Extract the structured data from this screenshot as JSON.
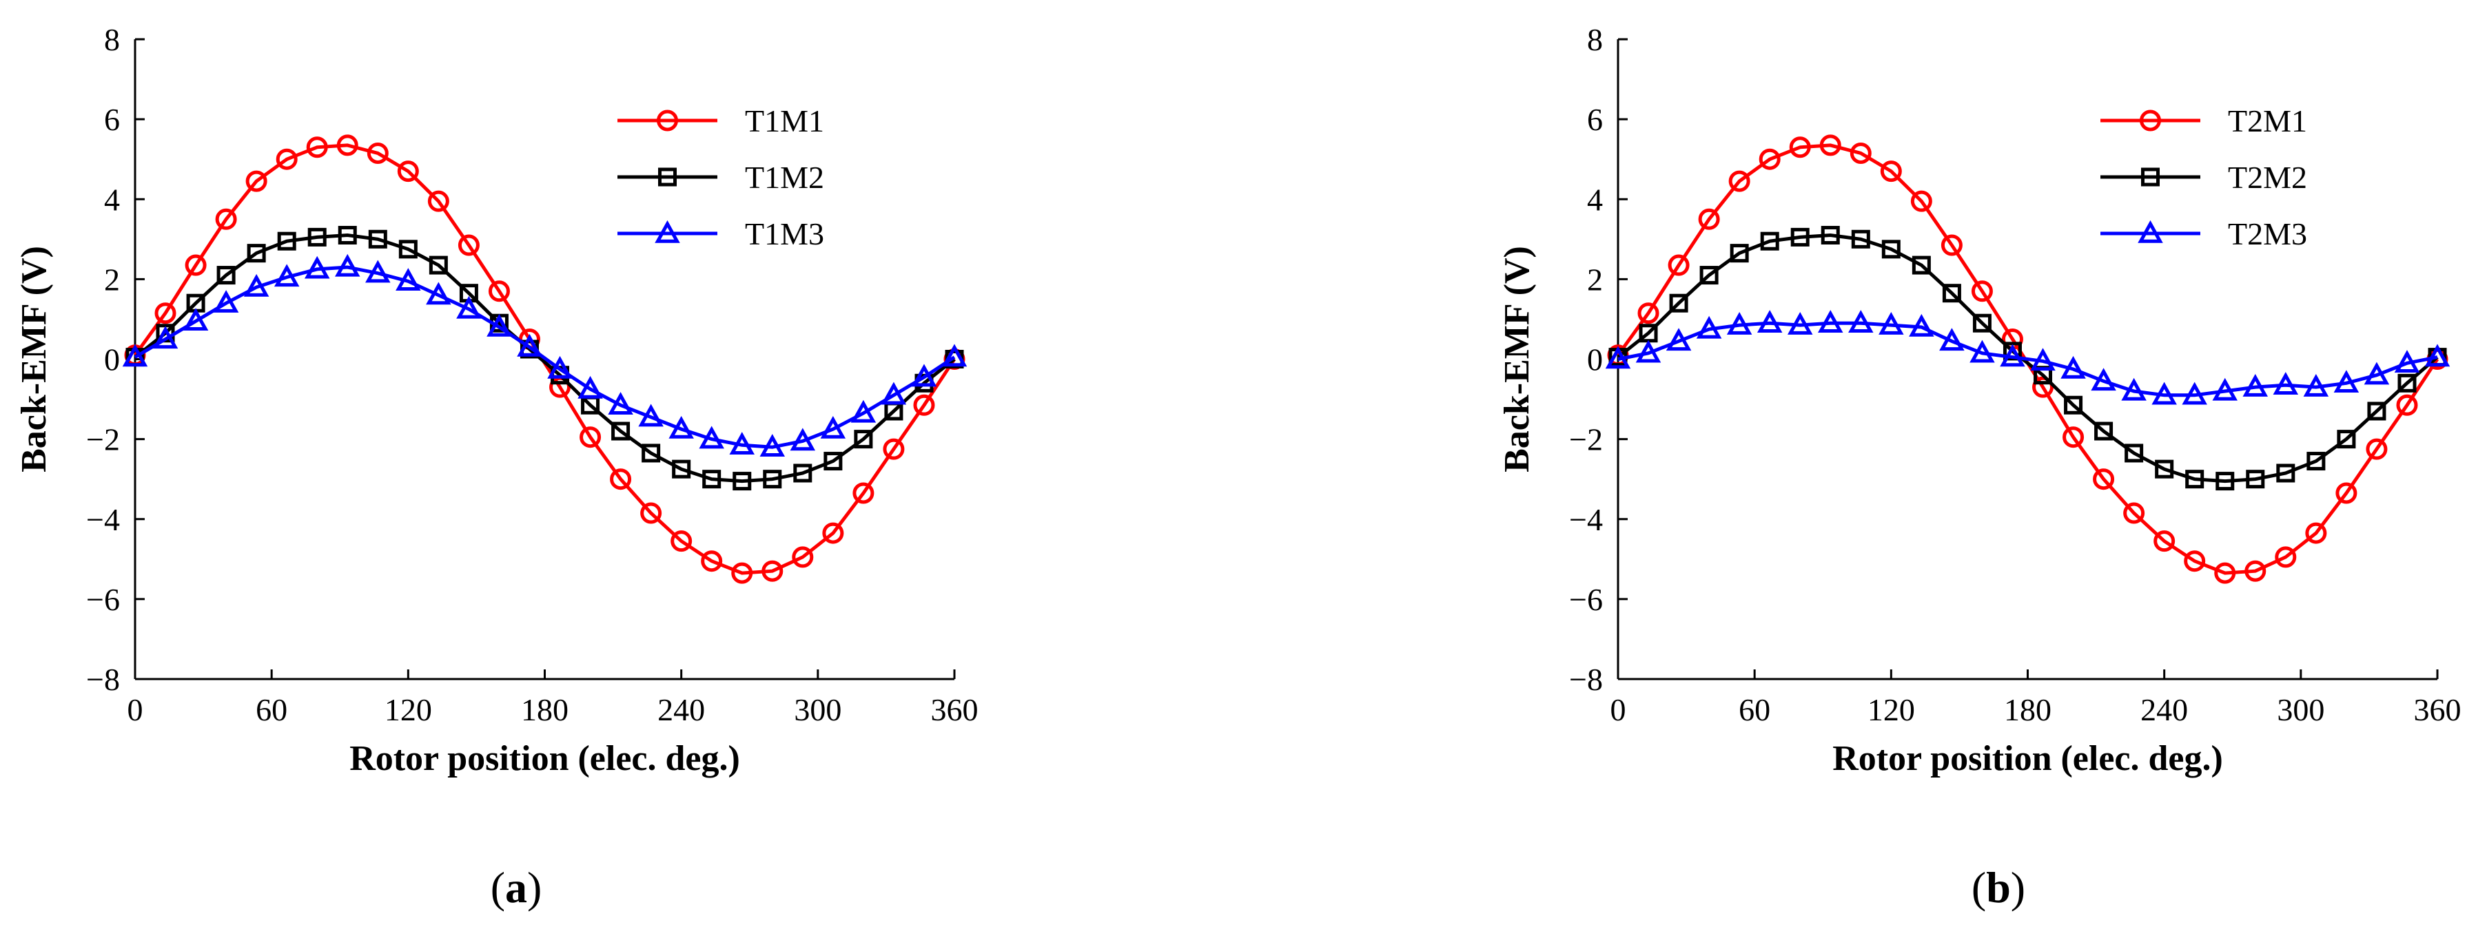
{
  "chart_data": [
    {
      "type": "line",
      "panel_label": "a",
      "xlabel": "Rotor position (elec. deg.)",
      "ylabel": "Back-EMF (V)",
      "xlim": [
        0,
        360
      ],
      "ylim": [
        -8,
        8
      ],
      "xticks": [
        0,
        60,
        120,
        180,
        240,
        300,
        360
      ],
      "yticks": [
        -8,
        -6,
        -4,
        -2,
        0,
        2,
        4,
        6,
        8
      ],
      "grid": false,
      "legend_position": "top-right",
      "x": [
        0,
        13.33,
        26.67,
        40,
        53.33,
        66.67,
        80,
        93.33,
        106.67,
        120,
        133.33,
        146.67,
        160,
        173.33,
        186.67,
        200,
        213.33,
        226.67,
        240,
        253.33,
        266.67,
        280,
        293.33,
        306.67,
        320,
        333.33,
        346.67,
        360
      ],
      "series": [
        {
          "name": "T1M1",
          "color": "#ff0000",
          "marker": "circle",
          "values": [
            0.1,
            1.15,
            2.35,
            3.5,
            4.45,
            5.0,
            5.3,
            5.35,
            5.15,
            4.7,
            3.95,
            2.85,
            1.7,
            0.5,
            -0.7,
            -1.95,
            -3.0,
            -3.85,
            -4.55,
            -5.05,
            -5.35,
            -5.3,
            -4.95,
            -4.35,
            -3.35,
            -2.25,
            -1.15,
            0.0
          ]
        },
        {
          "name": "T1M2",
          "color": "#000000",
          "marker": "square",
          "values": [
            0.05,
            0.65,
            1.4,
            2.1,
            2.65,
            2.95,
            3.05,
            3.1,
            3.0,
            2.75,
            2.35,
            1.65,
            0.9,
            0.25,
            -0.4,
            -1.15,
            -1.8,
            -2.35,
            -2.75,
            -3.0,
            -3.05,
            -3.0,
            -2.85,
            -2.55,
            -2.0,
            -1.3,
            -0.6,
            0.0
          ]
        },
        {
          "name": "T1M3",
          "color": "#0000ff",
          "marker": "triangle",
          "values": [
            0.05,
            0.5,
            0.95,
            1.4,
            1.8,
            2.05,
            2.25,
            2.3,
            2.15,
            1.95,
            1.6,
            1.25,
            0.8,
            0.3,
            -0.25,
            -0.75,
            -1.15,
            -1.45,
            -1.75,
            -2.0,
            -2.15,
            -2.2,
            -2.05,
            -1.75,
            -1.35,
            -0.9,
            -0.45,
            0.05
          ]
        }
      ]
    },
    {
      "type": "line",
      "panel_label": "b",
      "xlabel": "Rotor position (elec. deg.)",
      "ylabel": "Back-EMF (V)",
      "xlim": [
        0,
        360
      ],
      "ylim": [
        -8,
        8
      ],
      "xticks": [
        0,
        60,
        120,
        180,
        240,
        300,
        360
      ],
      "yticks": [
        -8,
        -6,
        -4,
        -2,
        0,
        2,
        4,
        6,
        8
      ],
      "grid": false,
      "legend_position": "top-right",
      "x": [
        0,
        13.33,
        26.67,
        40,
        53.33,
        66.67,
        80,
        93.33,
        106.67,
        120,
        133.33,
        146.67,
        160,
        173.33,
        186.67,
        200,
        213.33,
        226.67,
        240,
        253.33,
        266.67,
        280,
        293.33,
        306.67,
        320,
        333.33,
        346.67,
        360
      ],
      "series": [
        {
          "name": "T2M1",
          "color": "#ff0000",
          "marker": "circle",
          "values": [
            0.1,
            1.15,
            2.35,
            3.5,
            4.45,
            5.0,
            5.3,
            5.35,
            5.15,
            4.7,
            3.95,
            2.85,
            1.7,
            0.5,
            -0.7,
            -1.95,
            -3.0,
            -3.85,
            -4.55,
            -5.05,
            -5.35,
            -5.3,
            -4.95,
            -4.35,
            -3.35,
            -2.25,
            -1.15,
            0.0
          ]
        },
        {
          "name": "T2M2",
          "color": "#000000",
          "marker": "square",
          "values": [
            0.05,
            0.65,
            1.4,
            2.1,
            2.65,
            2.95,
            3.05,
            3.1,
            3.0,
            2.75,
            2.35,
            1.65,
            0.9,
            0.2,
            -0.4,
            -1.15,
            -1.8,
            -2.35,
            -2.75,
            -3.0,
            -3.05,
            -3.0,
            -2.85,
            -2.55,
            -2.0,
            -1.3,
            -0.6,
            0.05
          ]
        },
        {
          "name": "T2M3",
          "color": "#0000ff",
          "marker": "triangle",
          "values": [
            0.0,
            0.15,
            0.45,
            0.75,
            0.85,
            0.9,
            0.85,
            0.9,
            0.9,
            0.85,
            0.8,
            0.45,
            0.15,
            0.05,
            -0.05,
            -0.25,
            -0.55,
            -0.8,
            -0.9,
            -0.9,
            -0.8,
            -0.7,
            -0.65,
            -0.7,
            -0.6,
            -0.4,
            -0.1,
            0.05
          ]
        }
      ]
    }
  ]
}
